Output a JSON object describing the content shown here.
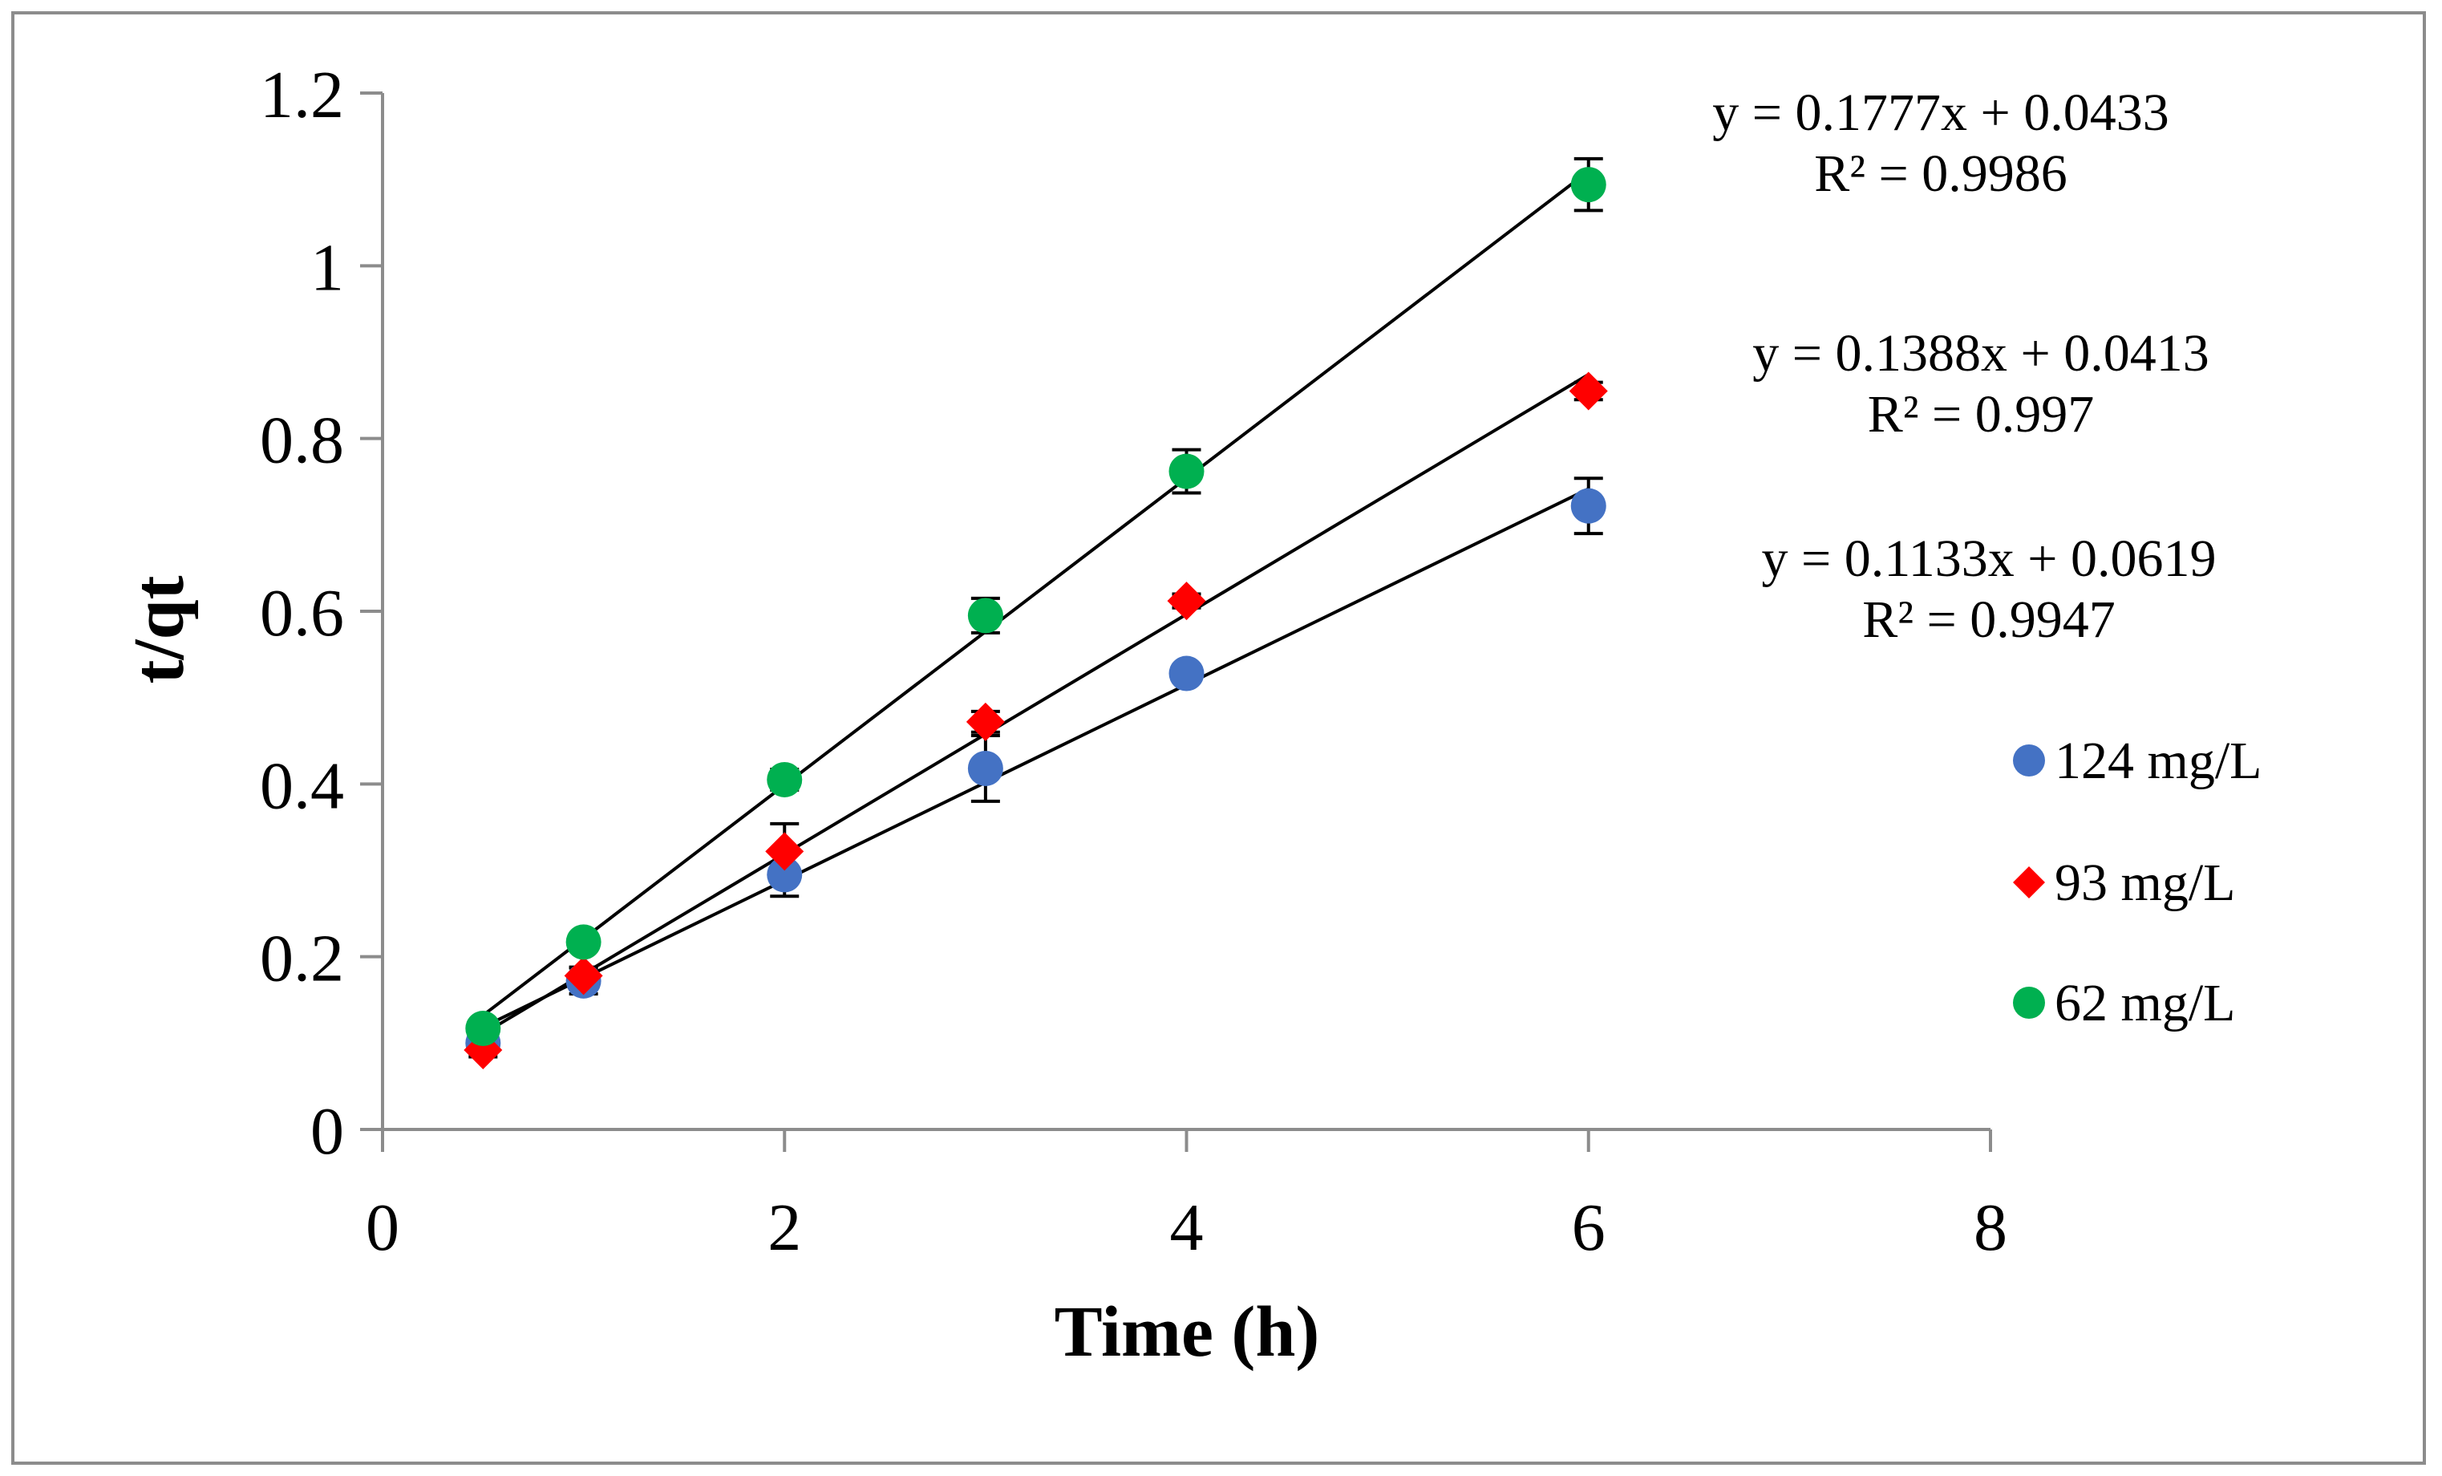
{
  "chart_data": {
    "type": "scatter",
    "title": "",
    "xlabel": "Time (h)",
    "ylabel": "t/qt",
    "xlim": [
      0,
      8
    ],
    "ylim": [
      0,
      1.2
    ],
    "x_ticks": [
      "0",
      "2",
      "4",
      "6",
      "8"
    ],
    "y_ticks": [
      "0",
      "0.2",
      "0.4",
      "0.6",
      "0.8",
      "1",
      "1.2"
    ],
    "grid": false,
    "legend_position": "right",
    "series": [
      {
        "name": "124 mg/L",
        "marker": "circle",
        "color": "#4472C4",
        "x": [
          0.5,
          1,
          2,
          3,
          4,
          6
        ],
        "y": [
          0.1,
          0.172,
          0.295,
          0.418,
          0.528,
          0.722
        ],
        "error": [
          0.01,
          0.015,
          0.025,
          0.038,
          0.01,
          0.032
        ],
        "trendline": {
          "slope": 0.1133,
          "intercept": 0.0619,
          "equation": "y = 0.1133x + 0.0619",
          "r2": "R² = 0.9947"
        }
      },
      {
        "name": "93 mg/L",
        "marker": "diamond",
        "color": "#FF0000",
        "x": [
          0.5,
          1,
          2,
          3,
          4,
          6
        ],
        "y": [
          0.092,
          0.178,
          0.322,
          0.472,
          0.612,
          0.855
        ],
        "error": [
          0.008,
          0.01,
          0.032,
          0.012,
          0.008,
          0.01
        ],
        "trendline": {
          "slope": 0.1388,
          "intercept": 0.0413,
          "equation": "y = 0.1388x + 0.0413",
          "r2": "R² = 0.997"
        }
      },
      {
        "name": "62 mg/L",
        "marker": "circle",
        "color": "#00B050",
        "x": [
          0.5,
          1,
          2,
          3,
          4,
          6
        ],
        "y": [
          0.117,
          0.217,
          0.405,
          0.595,
          0.762,
          1.094
        ],
        "error": [
          0.008,
          0.01,
          0.012,
          0.02,
          0.025,
          0.03
        ],
        "trendline": {
          "slope": 0.1777,
          "intercept": 0.0433,
          "equation": "y = 0.1777x + 0.0433",
          "r2": "R² = 0.9986"
        }
      }
    ],
    "annotations_order": [
      2,
      1,
      0
    ],
    "legend_order": [
      0,
      1,
      2
    ]
  }
}
